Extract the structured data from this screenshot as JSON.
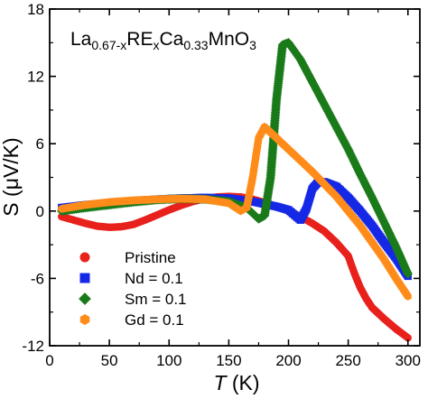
{
  "chart_data": {
    "type": "scatter",
    "title": "",
    "annotation": {
      "base": "La",
      "sub1": "0.67-x",
      "mid1": "RE",
      "sub2": "x",
      "mid2": "Ca",
      "sub3": "0.33",
      "mid3": "MnO",
      "sub4": "3"
    },
    "xlabel": {
      "italic": "T",
      "unit": "(K)"
    },
    "ylabel": "S (μV/K)",
    "xlim": [
      0,
      310
    ],
    "ylim": [
      -12,
      18
    ],
    "xticks": [
      0,
      50,
      100,
      150,
      200,
      250,
      300
    ],
    "yticks": [
      -12,
      -6,
      0,
      6,
      12,
      18
    ],
    "grid": false,
    "legend_position": "bottom-left",
    "series": [
      {
        "name": "Pristine",
        "color": "#e8211d",
        "marker": "circle",
        "points": [
          [
            10,
            -0.5
          ],
          [
            20,
            -0.8
          ],
          [
            30,
            -1.1
          ],
          [
            40,
            -1.35
          ],
          [
            50,
            -1.45
          ],
          [
            60,
            -1.4
          ],
          [
            70,
            -1.2
          ],
          [
            80,
            -0.8
          ],
          [
            90,
            -0.35
          ],
          [
            100,
            0.1
          ],
          [
            110,
            0.5
          ],
          [
            120,
            0.85
          ],
          [
            130,
            1.1
          ],
          [
            140,
            1.25
          ],
          [
            150,
            1.3
          ],
          [
            160,
            1.25
          ],
          [
            170,
            1.05
          ],
          [
            180,
            0.75
          ],
          [
            190,
            0.4
          ],
          [
            200,
            0.0
          ],
          [
            210,
            -0.5
          ],
          [
            220,
            -1.1
          ],
          [
            230,
            -1.8
          ],
          [
            240,
            -2.8
          ],
          [
            250,
            -4.0
          ],
          [
            255,
            -5.5
          ],
          [
            260,
            -6.8
          ],
          [
            265,
            -7.8
          ],
          [
            270,
            -8.6
          ],
          [
            280,
            -9.6
          ],
          [
            290,
            -10.5
          ],
          [
            300,
            -11.3
          ]
        ]
      },
      {
        "name": "Nd = 0.1",
        "color": "#1428e6",
        "marker": "square",
        "points": [
          [
            10,
            0.3
          ],
          [
            30,
            0.55
          ],
          [
            50,
            0.75
          ],
          [
            70,
            0.9
          ],
          [
            90,
            1.05
          ],
          [
            110,
            1.15
          ],
          [
            130,
            1.2
          ],
          [
            150,
            1.15
          ],
          [
            170,
            0.85
          ],
          [
            190,
            0.4
          ],
          [
            200,
            0.1
          ],
          [
            210,
            -0.8
          ],
          [
            215,
            0.2
          ],
          [
            220,
            2.0
          ],
          [
            225,
            2.6
          ],
          [
            230,
            2.6
          ],
          [
            240,
            2.2
          ],
          [
            250,
            1.2
          ],
          [
            260,
            0.0
          ],
          [
            270,
            -1.3
          ],
          [
            280,
            -2.8
          ],
          [
            290,
            -4.2
          ],
          [
            300,
            -5.8
          ]
        ]
      },
      {
        "name": "Sm = 0.1",
        "color": "#1a7a1a",
        "marker": "diamond",
        "points": [
          [
            10,
            0.0
          ],
          [
            30,
            0.3
          ],
          [
            50,
            0.55
          ],
          [
            70,
            0.8
          ],
          [
            90,
            1.0
          ],
          [
            110,
            1.1
          ],
          [
            130,
            1.05
          ],
          [
            150,
            0.85
          ],
          [
            165,
            0.3
          ],
          [
            175,
            -0.7
          ],
          [
            180,
            -0.4
          ],
          [
            185,
            3.0
          ],
          [
            190,
            10.0
          ],
          [
            195,
            14.8
          ],
          [
            200,
            15.0
          ],
          [
            210,
            13.5
          ],
          [
            220,
            11.5
          ],
          [
            230,
            9.5
          ],
          [
            240,
            7.5
          ],
          [
            250,
            5.5
          ],
          [
            260,
            3.3
          ],
          [
            270,
            1.2
          ],
          [
            280,
            -1.0
          ],
          [
            290,
            -3.2
          ],
          [
            300,
            -5.6
          ]
        ]
      },
      {
        "name": "Gd = 0.1",
        "color": "#ff8c1a",
        "marker": "hexagon",
        "points": [
          [
            10,
            0.2
          ],
          [
            30,
            0.55
          ],
          [
            50,
            0.8
          ],
          [
            70,
            0.95
          ],
          [
            90,
            1.05
          ],
          [
            110,
            1.1
          ],
          [
            130,
            1.05
          ],
          [
            150,
            0.7
          ],
          [
            160,
            0.0
          ],
          [
            165,
            0.3
          ],
          [
            170,
            3.0
          ],
          [
            175,
            6.5
          ],
          [
            180,
            7.5
          ],
          [
            190,
            6.5
          ],
          [
            200,
            5.5
          ],
          [
            210,
            4.5
          ],
          [
            220,
            3.5
          ],
          [
            230,
            2.4
          ],
          [
            240,
            1.3
          ],
          [
            250,
            0.0
          ],
          [
            260,
            -1.3
          ],
          [
            270,
            -2.8
          ],
          [
            280,
            -4.3
          ],
          [
            290,
            -6.0
          ],
          [
            300,
            -7.6
          ]
        ]
      }
    ]
  }
}
